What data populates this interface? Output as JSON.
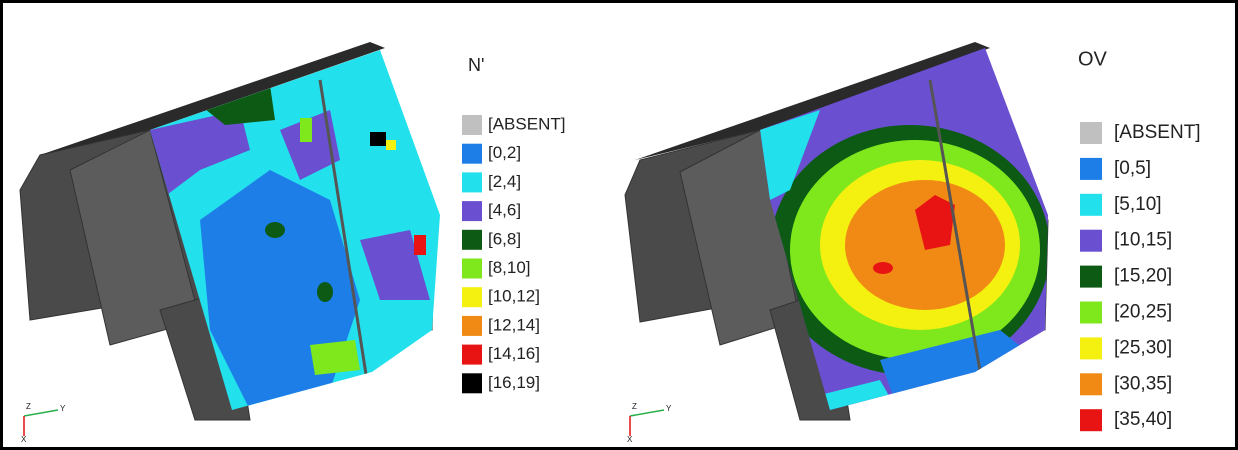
{
  "panels": [
    {
      "legend_title": "N'",
      "legend": [
        {
          "label": "[ABSENT]",
          "color": "#c0c0c0"
        },
        {
          "label": "[0,2]",
          "color": "#1e7ee8"
        },
        {
          "label": "[2,4]",
          "color": "#22e0ec"
        },
        {
          "label": "[4,6]",
          "color": "#6a4fd0"
        },
        {
          "label": "[6,8]",
          "color": "#0c5a14"
        },
        {
          "label": "[8,10]",
          "color": "#7ee81c"
        },
        {
          "label": "[10,12]",
          "color": "#f4f010"
        },
        {
          "label": "[12,14]",
          "color": "#f08a14"
        },
        {
          "label": "[14,16]",
          "color": "#e81414"
        },
        {
          "label": "[16,19]",
          "color": "#000000"
        }
      ],
      "axes": {
        "z": "Z",
        "y": "Y",
        "x": "X"
      }
    },
    {
      "legend_title": "OV",
      "legend": [
        {
          "label": "[ABSENT]",
          "color": "#c0c0c0"
        },
        {
          "label": "[0,5]",
          "color": "#1e7ee8"
        },
        {
          "label": "[5,10]",
          "color": "#22e0ec"
        },
        {
          "label": "[10,15]",
          "color": "#6a4fd0"
        },
        {
          "label": "[15,20]",
          "color": "#0c5a14"
        },
        {
          "label": "[20,25]",
          "color": "#7ee81c"
        },
        {
          "label": "[25,30]",
          "color": "#f4f010"
        },
        {
          "label": "[30,35]",
          "color": "#f08a14"
        },
        {
          "label": "[35,40]",
          "color": "#e81414"
        }
      ],
      "axes": {
        "z": "Z",
        "y": "Y",
        "x": "X"
      }
    }
  ]
}
